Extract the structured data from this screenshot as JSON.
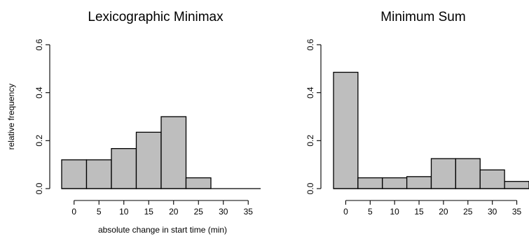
{
  "chart_data": [
    {
      "type": "bar",
      "title": "Lexicographic Minimax",
      "xlabel": "absolute change in start time (min)",
      "ylabel": "relative frequency",
      "ylim": [
        0,
        0.6
      ],
      "yticks": [
        0.0,
        0.2,
        0.4,
        0.6
      ],
      "ytick_labels": [
        "0.0",
        "0.2",
        "0.4",
        "0.6"
      ],
      "xticks": [
        0,
        5,
        10,
        15,
        20,
        25,
        30,
        35
      ],
      "xtick_labels": [
        "0",
        "5",
        "10",
        "15",
        "20",
        "25",
        "30",
        "35"
      ],
      "xlim": [
        -2.5,
        37.5
      ],
      "bins": [
        {
          "from": -2.5,
          "to": 2.5,
          "value": 0.12
        },
        {
          "from": 2.5,
          "to": 7.5,
          "value": 0.12
        },
        {
          "from": 7.5,
          "to": 12.5,
          "value": 0.167
        },
        {
          "from": 12.5,
          "to": 17.5,
          "value": 0.235
        },
        {
          "from": 17.5,
          "to": 22.5,
          "value": 0.3
        },
        {
          "from": 22.5,
          "to": 27.5,
          "value": 0.045
        },
        {
          "from": 27.5,
          "to": 32.5,
          "value": 0.0
        },
        {
          "from": 32.5,
          "to": 37.5,
          "value": 0.0
        }
      ]
    },
    {
      "type": "bar",
      "title": "Minimum Sum",
      "xlabel": "",
      "ylabel": "",
      "ylim": [
        0,
        0.6
      ],
      "yticks": [
        0.0,
        0.2,
        0.4,
        0.6
      ],
      "ytick_labels": [
        "0.0",
        "0.2",
        "0.4",
        "0.6"
      ],
      "xticks": [
        0,
        5,
        10,
        15,
        20,
        25,
        30,
        35
      ],
      "xtick_labels": [
        "0",
        "5",
        "10",
        "15",
        "20",
        "25",
        "30",
        "35"
      ],
      "xlim": [
        -2.5,
        37.5
      ],
      "bins": [
        {
          "from": -2.5,
          "to": 2.5,
          "value": 0.485
        },
        {
          "from": 2.5,
          "to": 7.5,
          "value": 0.045
        },
        {
          "from": 7.5,
          "to": 12.5,
          "value": 0.045
        },
        {
          "from": 12.5,
          "to": 17.5,
          "value": 0.05
        },
        {
          "from": 17.5,
          "to": 22.5,
          "value": 0.125
        },
        {
          "from": 22.5,
          "to": 27.5,
          "value": 0.125
        },
        {
          "from": 27.5,
          "to": 32.5,
          "value": 0.078
        },
        {
          "from": 32.5,
          "to": 37.5,
          "value": 0.03
        }
      ]
    }
  ]
}
